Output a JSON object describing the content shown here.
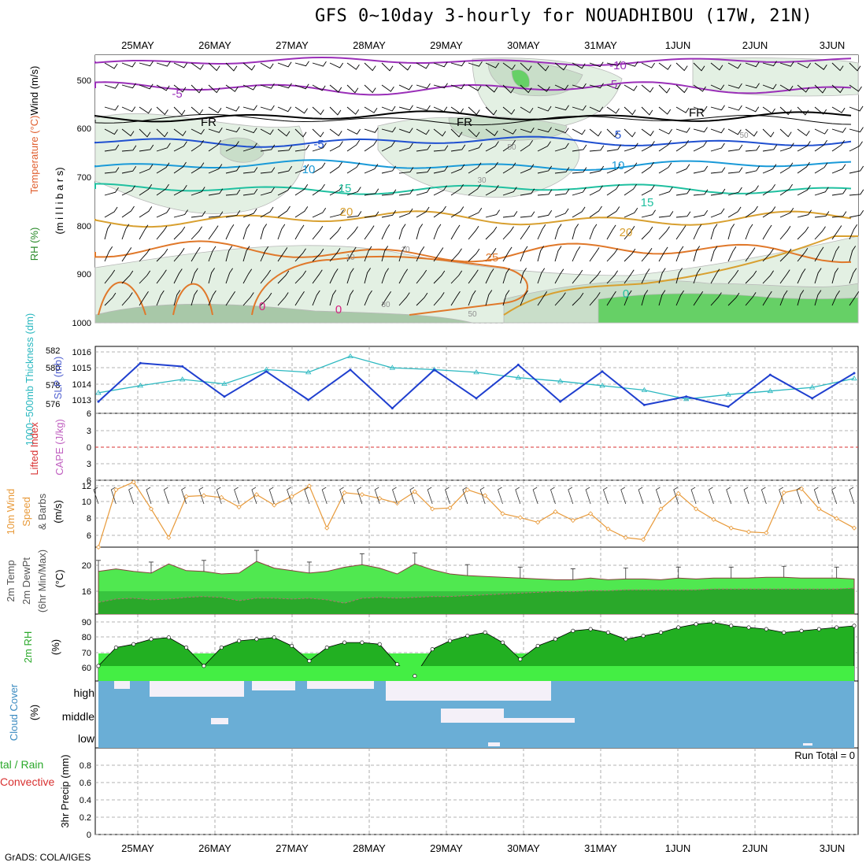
{
  "title": "GFS 0~10day 3-hourly for NOUADHIBOU (17W, 21N)",
  "credit": "GrADS: COLA/IGES",
  "dates": [
    "25MAY",
    "26MAY",
    "27MAY",
    "28MAY",
    "29MAY",
    "30MAY",
    "31MAY",
    "1JUN",
    "2JUN",
    "3JUN"
  ],
  "colors": {
    "slp": "#1f3fcf",
    "thickness": "#2bb8c0",
    "wind10": "#e89a3a",
    "temp": "#50e850",
    "dewpt": "#2aa82a",
    "rh_fill": "#22b022",
    "cloud": "#6aaed6",
    "clear": "#f4f0f8",
    "lifted": "#d83030",
    "cape": "#c060c0"
  },
  "panels": {
    "upper": {
      "labels": {
        "rh": "RH (%)",
        "temperature": "Temperature (°C)",
        "wind": "Wind (m/s)",
        "pressure": "(m i l l i b a r s)"
      },
      "yticks": [
        "500",
        "600",
        "700",
        "800",
        "900",
        "1000"
      ]
    },
    "slp": {
      "labels": {
        "thickness": "1000~500mb Thickness (dm)",
        "slp": "SLP (mb)"
      },
      "left_ticks": [
        "582",
        "580",
        "578",
        "576"
      ],
      "right_ticks": [
        "1016",
        "1015",
        "1014",
        "1013"
      ]
    },
    "cape": {
      "labels": {
        "lifted": "Lifted Index",
        "cape": "CAPE (J/kg)"
      },
      "yticks": [
        "6",
        "3",
        "0",
        "3",
        "6"
      ]
    },
    "wind": {
      "labels": {
        "line1": "10m Wind",
        "line2": "Speed",
        "line3": "& Barbs",
        "unit": "(m/s)"
      },
      "yticks": [
        "12",
        "10",
        "8",
        "6"
      ]
    },
    "temp": {
      "labels": {
        "line1": "2m Temp",
        "line2": "2m DewPt",
        "line3": "(6hr Min/Max)",
        "unit": "(°C)"
      },
      "yticks": [
        "20",
        "16"
      ]
    },
    "rh": {
      "labels": {
        "line1": "2m RH",
        "unit": "(%)"
      },
      "yticks": [
        "90",
        "80",
        "70",
        "60"
      ]
    },
    "cloud": {
      "labels": {
        "line1": "Cloud Cover",
        "unit": "(%)"
      },
      "levels": [
        "high",
        "middle",
        "low"
      ]
    },
    "precip": {
      "labels": {
        "total": "tal / Rain",
        "convective": "Convective",
        "unit": "3hr Precip (mm)"
      },
      "yticks": [
        "0.8",
        "0.6",
        "0.4",
        "0.2",
        "0"
      ],
      "run_total": "Run Total = 0"
    }
  },
  "contour_labels": {
    "temperature": [
      "-10",
      "-5",
      "5",
      "FR",
      "FR",
      "FR",
      "-5",
      "5",
      "10",
      "10",
      "15",
      "15",
      "20",
      "20",
      "25",
      "0",
      "0",
      "0"
    ],
    "rh": [
      "50",
      "50",
      "30",
      "10",
      "10",
      "30",
      "50"
    ]
  },
  "chart_data": [
    {
      "type": "line",
      "name": "slp",
      "x": [
        "25MAY00",
        "25MAY12",
        "26MAY00",
        "26MAY12",
        "27MAY00",
        "27MAY12",
        "28MAY00",
        "28MAY12",
        "29MAY00",
        "29MAY12",
        "30MAY00",
        "30MAY12",
        "31MAY00",
        "31MAY12",
        "1JUN00",
        "1JUN12",
        "2JUN00",
        "2JUN12",
        "3JUN00"
      ],
      "series": [
        {
          "values": [
            1013.0,
            1015.3,
            1015.1,
            1013.3,
            1014.8,
            1013.1,
            1014.9,
            1012.6,
            1014.9,
            1013.2,
            1015.2,
            1013.0,
            1014.8,
            1012.8,
            1013.3,
            1012.7,
            1014.6,
            1013.2,
            1014.7
          ]
        },
        {
          "values": [
            577.3,
            578.1,
            578.8,
            578.3,
            579.9,
            579.6,
            581.4,
            580.1,
            579.9,
            579.6,
            579.0,
            578.6,
            578.1,
            577.6,
            576.6,
            577.1,
            577.5,
            577.9,
            578.9
          ]
        }
      ]
    },
    {
      "type": "line",
      "name": "wind10",
      "values": [
        5.0,
        11.0,
        11.8,
        9.0,
        6.0,
        10.3,
        10.4,
        10.2,
        9.2,
        10.5,
        9.4,
        10.3,
        11.4,
        7.0,
        10.7,
        10.5,
        10.1,
        9.6,
        10.8,
        9.0,
        9.1,
        11.0,
        10.4,
        8.5,
        8.1,
        7.6,
        8.7,
        7.8,
        8.5,
        6.9,
        6.0,
        5.8,
        9.0,
        10.6,
        9.0,
        7.9,
        7.0,
        6.6,
        6.5,
        10.7,
        11.1,
        9.0,
        8.0,
        7.0
      ],
      "ylim": [
        5,
        12
      ]
    },
    {
      "type": "area",
      "name": "temp",
      "values": [
        19.1,
        19.4,
        19.1,
        18.9,
        20.0,
        19.2,
        19.1,
        18.8,
        18.9,
        20.3,
        19.5,
        19.2,
        18.9,
        19.1,
        19.6,
        19.9,
        19.5,
        18.8,
        20.0,
        19.3,
        18.8,
        18.6,
        18.5,
        18.4,
        18.3,
        18.2,
        18.1,
        18.1,
        18.3,
        18.1,
        18.2,
        18.2,
        18.1,
        18.3,
        18.2,
        18.3,
        18.3,
        18.3,
        18.4,
        18.4,
        18.3,
        18.3,
        18.3,
        18.2
      ],
      "ylim": [
        14,
        22
      ]
    },
    {
      "type": "line",
      "name": "dewpt",
      "values": [
        15.4,
        15.8,
        15.9,
        15.7,
        15.8,
        16.0,
        16.1,
        16.0,
        15.6,
        15.9,
        15.9,
        15.8,
        15.9,
        15.7,
        15.3,
        15.9,
        16.0,
        15.9,
        16.0,
        16.1,
        16.1,
        16.2,
        16.3,
        16.4,
        16.5,
        16.6,
        16.7,
        16.7,
        16.8,
        16.8,
        16.9,
        16.9,
        16.9,
        16.9,
        16.9,
        17.0,
        17.0,
        17.0,
        17.0,
        17.0,
        17.0,
        17.0,
        17.0,
        17.1
      ],
      "ylim": [
        14,
        22
      ]
    },
    {
      "type": "area",
      "name": "rh2m",
      "values": [
        64,
        75,
        77,
        80,
        81,
        75,
        64,
        75,
        79,
        80,
        81,
        76,
        67,
        75,
        78,
        78,
        77,
        65,
        58,
        74,
        79,
        82,
        84,
        78,
        68,
        76,
        80,
        85,
        86,
        84,
        80,
        82,
        84,
        87,
        89,
        90,
        88,
        87,
        86,
        84,
        85,
        86,
        87,
        88
      ],
      "ylim": [
        55,
        95
      ]
    },
    {
      "type": "bar",
      "name": "precip",
      "values": [
        0
      ],
      "ylim": [
        0,
        1
      ]
    }
  ]
}
